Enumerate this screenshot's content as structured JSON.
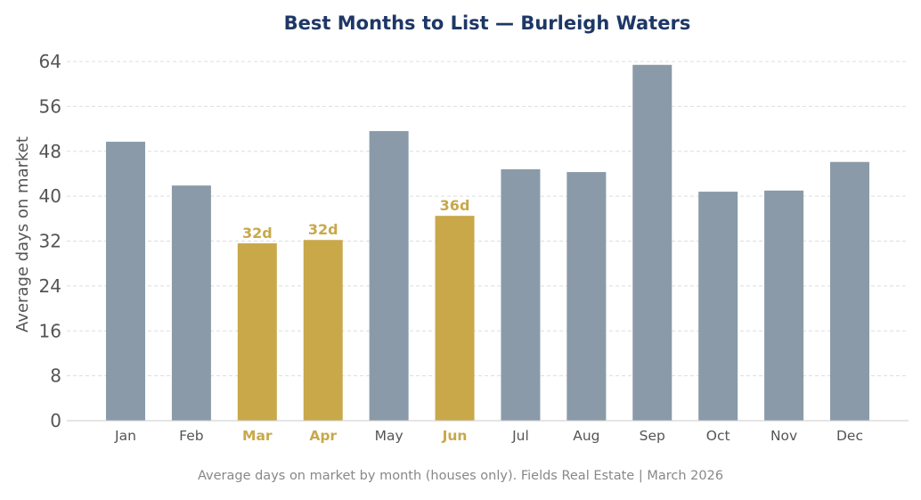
{
  "chart_data": {
    "type": "bar",
    "title": "Best Months to List — Burleigh Waters",
    "xlabel": "",
    "ylabel": "Average days on market",
    "caption": "Average days on market by month (houses only). Fields Real Estate | March 2026",
    "categories": [
      "Jan",
      "Feb",
      "Mar",
      "Apr",
      "May",
      "Jun",
      "Jul",
      "Aug",
      "Sep",
      "Oct",
      "Nov",
      "Dec"
    ],
    "values": [
      49.7,
      41.9,
      31.6,
      32.2,
      51.6,
      36.5,
      44.8,
      44.3,
      63.4,
      40.8,
      41.0,
      46.1
    ],
    "highlighted": [
      "Mar",
      "Apr",
      "Jun"
    ],
    "data_labels": {
      "Mar": "32d",
      "Apr": "32d",
      "Jun": "36d"
    },
    "ylim": [
      0,
      66
    ],
    "yticks": [
      0,
      8,
      16,
      24,
      32,
      40,
      48,
      56,
      64
    ],
    "grid": true,
    "colors": {
      "default": "#8a9aa8",
      "highlight": "#c9a84a",
      "title": "#1e3766",
      "text": "#555555",
      "caption": "#888888",
      "grid": "#dddddd"
    }
  }
}
